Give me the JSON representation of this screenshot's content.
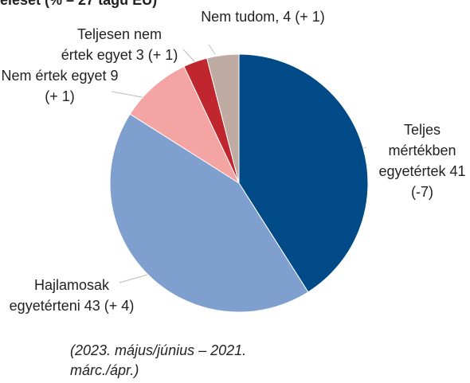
{
  "chart_data": {
    "type": "pie",
    "title": "eleset (% – 27 tagú EU)",
    "categories": [
      "Teljes mértékben egyetértek",
      "Hajlamosak egyetérteni",
      "Nem értek egyet",
      "Teljesen nem értek egyet",
      "Nem tudom,"
    ],
    "values": [
      41,
      43,
      9,
      3,
      4
    ],
    "changes": [
      "(-7)",
      "(+ 4)",
      "(+ 1)",
      "(+ 1)",
      "(+ 1)"
    ],
    "colors": [
      "#004b87",
      "#7f9fcf",
      "#f4a5a3",
      "#c0262d",
      "#bfaba2"
    ],
    "note": "(2023. május/június – 2021. márc./ápr.)"
  }
}
